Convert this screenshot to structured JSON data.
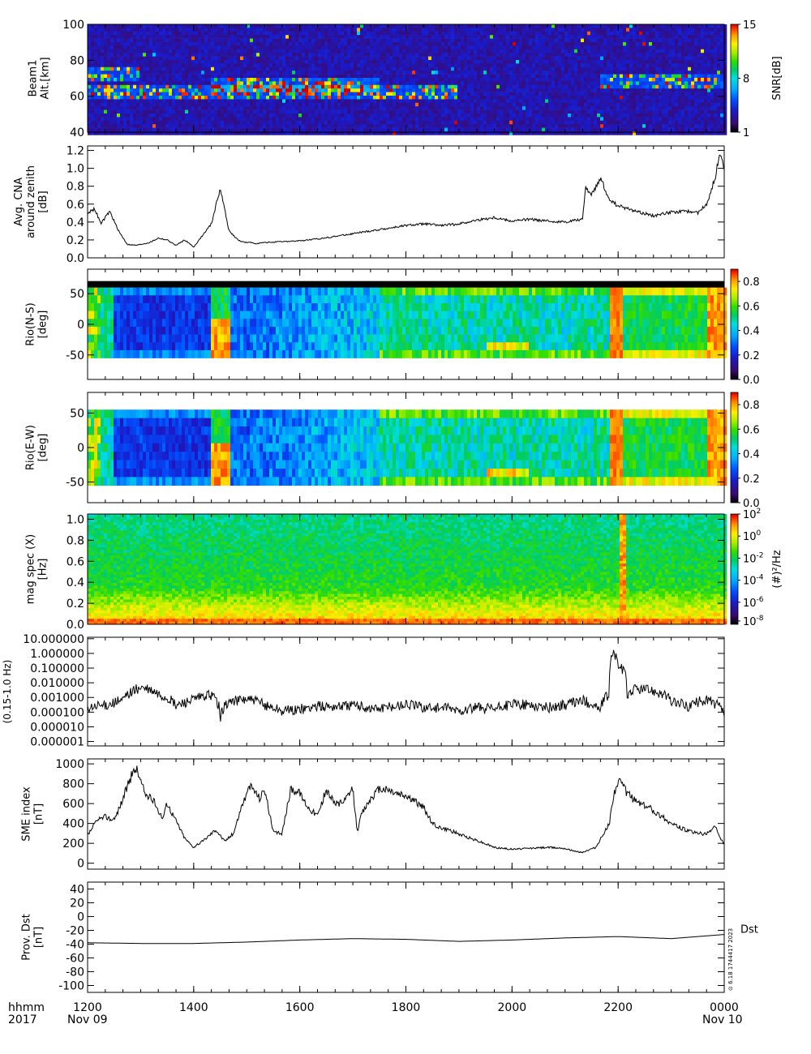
{
  "x_axis": {
    "ticks": [
      {
        "t": 0,
        "label": "1200"
      },
      {
        "t": 120,
        "label": "1400"
      },
      {
        "t": 240,
        "label": "1600"
      },
      {
        "t": 360,
        "label": "1800"
      },
      {
        "t": 480,
        "label": "2000"
      },
      {
        "t": 600,
        "label": "2200"
      },
      {
        "t": 720,
        "label": "0000"
      }
    ],
    "minor_step_minutes": 20,
    "range_minutes": [
      0,
      720
    ],
    "corner_top": "hhmm",
    "corner_bottom": "2017",
    "date_start": "Nov 09",
    "date_end": "Nov 10"
  },
  "palette": [
    "#000000",
    "#3a0a6e",
    "#1a1ac8",
    "#0050ff",
    "#00aaff",
    "#00dddd",
    "#00cc66",
    "#33dd00",
    "#aaee00",
    "#ffee00",
    "#ff9900",
    "#ff3300",
    "#cc0000"
  ],
  "chart_data": [
    {
      "id": "beam1",
      "type": "heatmap",
      "ylabel": [
        "Beam1",
        "Alt.[km]"
      ],
      "ylim": [
        40,
        100
      ],
      "yticks": [
        40,
        60,
        80,
        100
      ],
      "colorbar": {
        "label": "SNR[dB]",
        "range": [
          1,
          15
        ],
        "ticks": [
          {
            "v": 1,
            "label": "1"
          },
          {
            "v": 8,
            "label": "8"
          },
          {
            "v": 15,
            "label": "15"
          }
        ]
      },
      "enhancement_bands": [
        {
          "alt_km": 63,
          "t_range": [
            0,
            420
          ]
        },
        {
          "alt_km": 67,
          "t_range": [
            140,
            330
          ]
        },
        {
          "alt_km": 68,
          "t_range": [
            580,
            720
          ]
        },
        {
          "alt_km": 73,
          "t_range": [
            0,
            60
          ]
        }
      ]
    },
    {
      "id": "cna",
      "type": "line",
      "ylabel": [
        "Avg. CNA",
        "around zenith",
        "[dB]"
      ],
      "ylim": [
        0,
        1.25
      ],
      "yticks": [
        0.0,
        0.2,
        0.4,
        0.6,
        0.8,
        1.0,
        1.2
      ],
      "tick_labels": [
        "0.0",
        "0.2",
        "0.4",
        "0.6",
        "0.8",
        "1.0",
        "1.2"
      ],
      "t": [
        0,
        8,
        15,
        25,
        35,
        45,
        55,
        60,
        70,
        80,
        90,
        100,
        110,
        120,
        140,
        150,
        160,
        170,
        175,
        180,
        185,
        190,
        200,
        220,
        240,
        260,
        280,
        300,
        320,
        340,
        360,
        380,
        400,
        420,
        440,
        460,
        480,
        500,
        520,
        540,
        550,
        560,
        563,
        570,
        580,
        590,
        600,
        620,
        640,
        660,
        680,
        690,
        700,
        710,
        715,
        720
      ],
      "values": [
        0.5,
        0.55,
        0.38,
        0.52,
        0.3,
        0.15,
        0.14,
        0.15,
        0.17,
        0.22,
        0.2,
        0.14,
        0.2,
        0.12,
        0.38,
        0.78,
        0.3,
        0.2,
        0.18,
        0.17,
        0.17,
        0.16,
        0.17,
        0.18,
        0.19,
        0.21,
        0.24,
        0.27,
        0.3,
        0.33,
        0.36,
        0.38,
        0.36,
        0.38,
        0.42,
        0.45,
        0.41,
        0.43,
        0.41,
        0.4,
        0.42,
        0.43,
        0.8,
        0.7,
        0.9,
        0.65,
        0.58,
        0.52,
        0.47,
        0.51,
        0.52,
        0.5,
        0.6,
        0.9,
        1.2,
        1.0
      ]
    },
    {
      "id": "rio_ns",
      "type": "heatmap",
      "ylabel": [
        "Rio(N-S)",
        "[deg]"
      ],
      "ylim": [
        -90,
        90
      ],
      "yticks": [
        -50,
        0,
        50
      ],
      "data_lat_range": [
        -55,
        60
      ],
      "top_strip": "black",
      "colorbar": {
        "label": "",
        "range": [
          0,
          0.9
        ],
        "ticks": [
          {
            "v": 0,
            "label": "0.0"
          },
          {
            "v": 0.2,
            "label": "0.2"
          },
          {
            "v": 0.4,
            "label": "0.4"
          },
          {
            "v": 0.6,
            "label": "0.6"
          },
          {
            "v": 0.8,
            "label": "0.8"
          }
        ]
      }
    },
    {
      "id": "rio_ew",
      "type": "heatmap",
      "ylabel": [
        "Rio(E-W)",
        "[deg]"
      ],
      "ylim": [
        -80,
        80
      ],
      "yticks": [
        -50,
        0,
        50
      ],
      "data_lat_range": [
        -55,
        55
      ],
      "colorbar": {
        "label": "",
        "range": [
          0,
          0.9
        ],
        "ticks": [
          {
            "v": 0,
            "label": "0.0"
          },
          {
            "v": 0.2,
            "label": "0.2"
          },
          {
            "v": 0.4,
            "label": "0.4"
          },
          {
            "v": 0.6,
            "label": "0.6"
          },
          {
            "v": 0.8,
            "label": "0.8"
          }
        ]
      }
    },
    {
      "id": "magspec",
      "type": "heatmap",
      "ylabel": [
        "mag spec (X)",
        "[Hz]"
      ],
      "ylim": [
        0,
        1.05
      ],
      "yticks": [
        0.0,
        0.2,
        0.4,
        0.6,
        0.8,
        1.0
      ],
      "tick_labels": [
        "0.0",
        "0.2",
        "0.4",
        "0.6",
        "0.8",
        "1.0"
      ],
      "colorbar": {
        "label": "(#)²/Hz",
        "ticks": [
          {
            "v": 1,
            "label": "10",
            "sup": "2"
          },
          {
            "v": 0.8,
            "label": "10",
            "sup": "0"
          },
          {
            "v": 0.6,
            "label": "10",
            "sup": "-2"
          },
          {
            "v": 0.4,
            "label": "10",
            "sup": "-4"
          },
          {
            "v": 0.2,
            "label": "10",
            "sup": "-6"
          },
          {
            "v": 0.03,
            "label": "10",
            "sup": "-8"
          }
        ]
      },
      "burst_t": 605
    },
    {
      "id": "pc_power",
      "type": "line",
      "scale": "log",
      "ylabel": [
        "(0.15-1.0 Hz)"
      ],
      "yticks": [
        1e-06,
        1e-05,
        0.0001,
        0.001,
        0.01,
        0.1,
        1,
        10
      ],
      "tick_labels": [
        "0.000001",
        "0.000010",
        "0.000100",
        "0.001000",
        "0.010000",
        "0.100000",
        "1.000000",
        "10.000000"
      ],
      "t": [
        0,
        20,
        40,
        60,
        80,
        100,
        120,
        140,
        150,
        160,
        180,
        200,
        220,
        240,
        260,
        280,
        300,
        320,
        340,
        360,
        380,
        400,
        420,
        440,
        460,
        480,
        500,
        520,
        540,
        560,
        580,
        590,
        595,
        600,
        610,
        620,
        640,
        660,
        680,
        700,
        720
      ],
      "values": [
        0.00015,
        0.0003,
        0.0006,
        0.0045,
        0.0015,
        0.00025,
        0.0007,
        0.0015,
        1.5e-05,
        0.0005,
        0.0008,
        0.0003,
        0.00012,
        0.00015,
        0.00025,
        0.00025,
        0.0003,
        0.00018,
        0.0002,
        0.00035,
        0.00022,
        0.0002,
        0.00012,
        0.0002,
        0.00015,
        0.00035,
        0.0003,
        0.0002,
        0.0003,
        0.0006,
        0.00012,
        0.0015,
        1.0,
        0.15,
        0.0015,
        0.004,
        0.003,
        0.0005,
        0.00025,
        0.0007,
        4e-05
      ]
    },
    {
      "id": "sme",
      "type": "line",
      "ylabel": [
        "SME index",
        "[nT]"
      ],
      "ylim": [
        -60,
        1050
      ],
      "yticks": [
        0,
        200,
        400,
        600,
        800,
        1000
      ],
      "tick_labels": [
        "0",
        "200",
        "400",
        "600",
        "800",
        "1000"
      ],
      "t": [
        0,
        10,
        20,
        30,
        40,
        48,
        55,
        65,
        75,
        85,
        90,
        100,
        110,
        120,
        130,
        145,
        155,
        165,
        175,
        185,
        195,
        200,
        210,
        220,
        230,
        240,
        250,
        260,
        270,
        280,
        290,
        300,
        305,
        310,
        320,
        330,
        340,
        350,
        360,
        370,
        380,
        390,
        400,
        410,
        420,
        440,
        460,
        480,
        500,
        520,
        540,
        550,
        560,
        575,
        590,
        595,
        600,
        605,
        610,
        620,
        640,
        660,
        680,
        700,
        710,
        715,
        720
      ],
      "values": [
        280,
        420,
        470,
        430,
        650,
        850,
        960,
        700,
        620,
        450,
        600,
        430,
        250,
        160,
        220,
        340,
        220,
        300,
        600,
        780,
        650,
        760,
        310,
        300,
        760,
        700,
        560,
        480,
        740,
        600,
        610,
        750,
        310,
        500,
        650,
        750,
        740,
        700,
        680,
        620,
        560,
        400,
        350,
        330,
        290,
        230,
        160,
        140,
        150,
        160,
        150,
        120,
        110,
        160,
        400,
        700,
        820,
        800,
        700,
        630,
        530,
        400,
        320,
        290,
        380,
        250,
        200
      ]
    },
    {
      "id": "dst",
      "type": "line",
      "ylabel": [
        "Prov. Dst",
        "[nT]"
      ],
      "ylim": [
        -110,
        50
      ],
      "yticks": [
        -100,
        -80,
        -60,
        -40,
        -20,
        0,
        20,
        40
      ],
      "tick_labels": [
        "-100",
        "-80",
        "-60",
        "-40",
        "-20",
        "0",
        "20",
        "40"
      ],
      "t": [
        0,
        60,
        120,
        180,
        240,
        300,
        360,
        420,
        480,
        540,
        600,
        660,
        720
      ],
      "values": [
        -38,
        -39,
        -39,
        -37,
        -34,
        -32,
        -33,
        -36,
        -34,
        -31,
        -29,
        -32,
        -26
      ],
      "series_label": "Dst",
      "side_stamp": "⊙ 6.18 1744417 2023"
    }
  ]
}
